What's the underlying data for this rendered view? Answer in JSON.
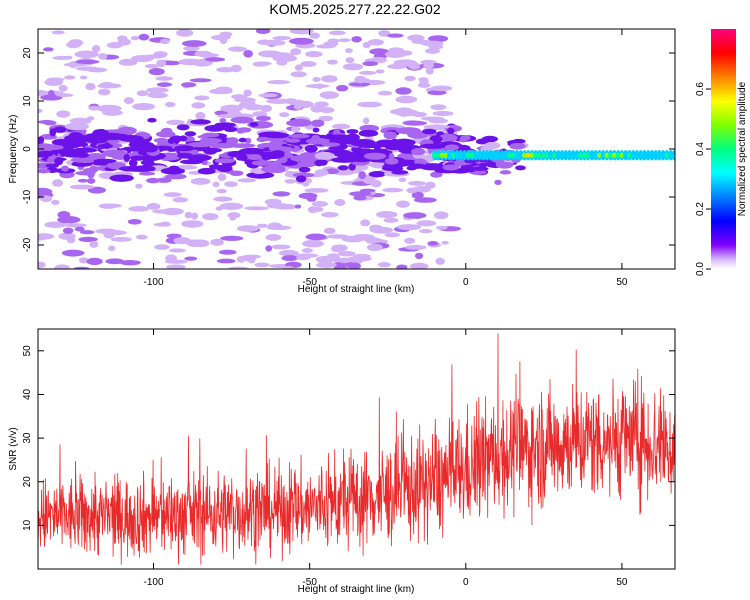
{
  "title": "KOM5.2025.277.22.22.G02",
  "colors": {
    "snr_line": "#e82a2a",
    "scatter_light": "#c9a6f2",
    "scatter_dark": "#7a1fe6"
  },
  "chart_data": [
    {
      "type": "heatmap",
      "title": "KOM5.2025.277.22.22.G02",
      "xlabel": "Height of straight line (km)",
      "ylabel": "Frequency (Hz)",
      "xlim": [
        -137,
        67
      ],
      "ylim": [
        -25,
        25
      ],
      "xticks": [
        -100,
        -50,
        0,
        50
      ],
      "yticks": [
        -20,
        -10,
        0,
        10,
        20
      ],
      "colorbar": {
        "label": "Normalized spectral amplitude",
        "range": [
          0.0,
          0.8
        ],
        "ticks": [
          0.0,
          0.2,
          0.4,
          0.6
        ],
        "colormap": [
          "#ff0080",
          "#ff0000",
          "#ff8000",
          "#ffff00",
          "#80ff00",
          "#00ff80",
          "#00ffff",
          "#0080ff",
          "#0000ff",
          "#8000ff",
          "#ffffff"
        ]
      },
      "features": {
        "background_noise": {
          "x_range": [
            -137,
            -5
          ],
          "y_range": [
            -25,
            25
          ],
          "amplitude_range": [
            0.02,
            0.12
          ]
        },
        "dense_band": {
          "x_range": [
            -137,
            0
          ],
          "y_range": [
            -5,
            5
          ],
          "amplitude_range": [
            0.05,
            0.2
          ]
        },
        "strong_line": {
          "x_range": [
            -10,
            67
          ],
          "frequency_hz": -1.3,
          "amplitude_range": [
            0.3,
            0.75
          ]
        }
      }
    },
    {
      "type": "line",
      "xlabel": "Height of straight line (km)",
      "ylabel": "SNR (v/v)",
      "xlim": [
        -137,
        67
      ],
      "ylim": [
        0,
        55
      ],
      "xticks": [
        -100,
        -50,
        0,
        50
      ],
      "yticks": [
        10,
        20,
        30,
        40,
        50
      ],
      "series": [
        {
          "x_range": [
            -137,
            67
          ],
          "trend": [
            {
              "x": -137,
              "y": 12
            },
            {
              "x": -100,
              "y": 12
            },
            {
              "x": -75,
              "y": 13
            },
            {
              "x": -50,
              "y": 14
            },
            {
              "x": -25,
              "y": 17
            },
            {
              "x": -5,
              "y": 21
            },
            {
              "x": 10,
              "y": 26
            },
            {
              "x": 30,
              "y": 29
            },
            {
              "x": 50,
              "y": 30
            },
            {
              "x": 67,
              "y": 28
            }
          ],
          "spread": [
            {
              "x": -137,
              "y": 8
            },
            {
              "x": -50,
              "y": 9
            },
            {
              "x": 0,
              "y": 12
            },
            {
              "x": 67,
              "y": 12
            }
          ],
          "max": 54,
          "min": 1
        }
      ]
    }
  ]
}
